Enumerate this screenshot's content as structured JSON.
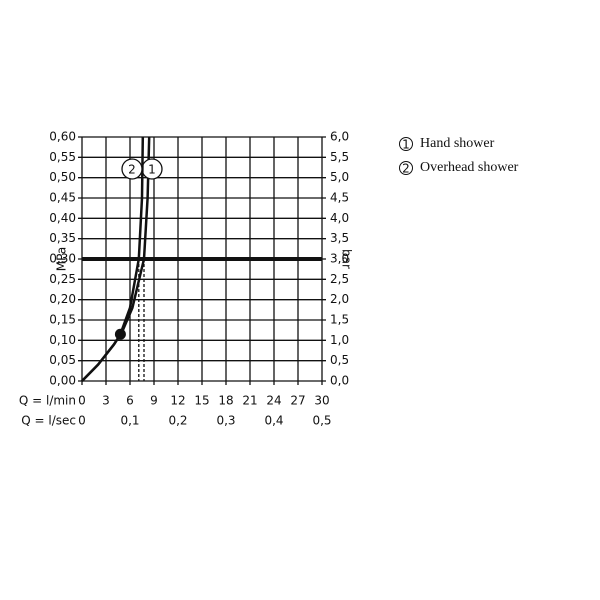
{
  "chart_data": {
    "type": "line",
    "x_label": "Q = l/min",
    "x2_label": "Q = l/sec",
    "y_label": "MPa",
    "y2_label": "bar",
    "xlim": [
      0,
      30
    ],
    "xticks": [
      0,
      3,
      6,
      9,
      12,
      15,
      18,
      21,
      24,
      27,
      30
    ],
    "x2lim": [
      0,
      0.5
    ],
    "x2ticks": [
      0,
      {
        "value": 0.1,
        "label": "0,1"
      },
      {
        "value": 0.2,
        "label": "0,2"
      },
      {
        "value": 0.3,
        "label": "0,3"
      },
      {
        "value": 0.4,
        "label": "0,4"
      },
      {
        "value": 0.5,
        "label": "0,5"
      }
    ],
    "ylim": [
      0,
      0.6
    ],
    "yticks": [
      {
        "value": 0,
        "label": "0,00"
      },
      {
        "value": 0.05,
        "label": "0,05"
      },
      {
        "value": 0.1,
        "label": "0,10"
      },
      {
        "value": 0.15,
        "label": "0,15"
      },
      {
        "value": 0.2,
        "label": "0,20"
      },
      {
        "value": 0.25,
        "label": "0,25"
      },
      {
        "value": 0.3,
        "label": "0,30"
      },
      {
        "value": 0.35,
        "label": "0,35"
      },
      {
        "value": 0.4,
        "label": "0,40"
      },
      {
        "value": 0.45,
        "label": "0,45"
      },
      {
        "value": 0.5,
        "label": "0,50"
      },
      {
        "value": 0.55,
        "label": "0,55"
      },
      {
        "value": 0.6,
        "label": "0,60"
      }
    ],
    "y2lim": [
      0,
      6
    ],
    "y2ticks": [
      {
        "value": 0,
        "label": "0,0"
      },
      {
        "value": 0.5,
        "label": "0,5"
      },
      {
        "value": 1,
        "label": "1,0"
      },
      {
        "value": 1.5,
        "label": "1,5"
      },
      {
        "value": 2,
        "label": "2,0"
      },
      {
        "value": 2.5,
        "label": "2,5"
      },
      {
        "value": 3,
        "label": "3,0"
      },
      {
        "value": 3.5,
        "label": "3,5"
      },
      {
        "value": 4,
        "label": "4,0"
      },
      {
        "value": 4.5,
        "label": "4,5"
      },
      {
        "value": 5,
        "label": "5,0"
      },
      {
        "value": 5.5,
        "label": "5,5"
      },
      {
        "value": 6,
        "label": "6,0"
      }
    ],
    "grid": true,
    "reference_y": 0.3,
    "highlight": {
      "x": 4.8,
      "y": 0.115
    },
    "series": [
      {
        "name": "Hand shower",
        "tag": "1",
        "color": "#111111",
        "x": [
          0,
          2,
          4,
          5,
          6.3,
          7.75,
          8.2,
          8.4
        ],
        "values": [
          0,
          0.04,
          0.09,
          0.12,
          0.18,
          0.3,
          0.45,
          0.6
        ]
      },
      {
        "name": "Overhead shower",
        "tag": "2",
        "color": "#111111",
        "x": [
          0,
          2,
          4,
          4.8,
          6,
          7.1,
          7.5,
          7.6
        ],
        "values": [
          0,
          0.04,
          0.09,
          0.115,
          0.18,
          0.3,
          0.45,
          0.6
        ]
      }
    ]
  }
}
